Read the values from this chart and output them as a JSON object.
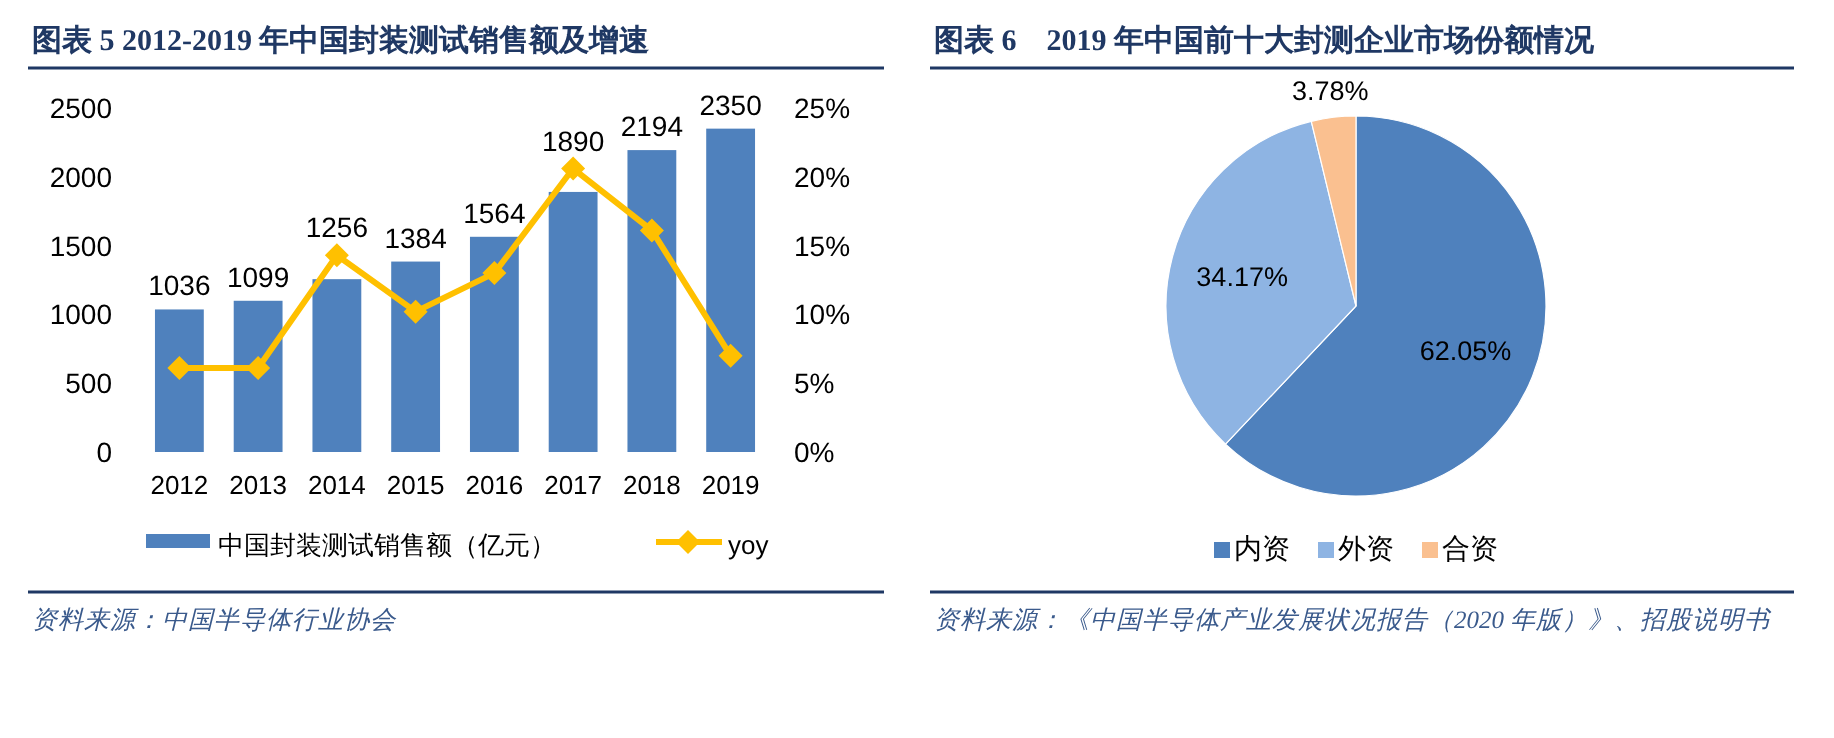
{
  "chart_data": [
    {
      "type": "bar",
      "title": "图表 5 2012-2019 年中国封装测试销售额及增速",
      "categories": [
        "2012",
        "2013",
        "2014",
        "2015",
        "2016",
        "2017",
        "2018",
        "2019"
      ],
      "series": [
        {
          "name": "中国封装测试销售额（亿元）",
          "type": "bar",
          "color": "#4f81bd",
          "values": [
            1036,
            1099,
            1256,
            1384,
            1564,
            1890,
            2194,
            2350
          ],
          "value_labels": [
            "1036",
            "1099",
            "1256",
            "1384",
            "1564",
            "1890",
            "2194",
            "2350"
          ]
        },
        {
          "name": "yoy",
          "type": "line",
          "axis": "y2",
          "color": "#ffc000",
          "marker": "diamond",
          "values": [
            6.1,
            6.1,
            14.3,
            10.2,
            13.0,
            20.6,
            16.1,
            7.0
          ]
        }
      ],
      "ylim": [
        0,
        2500
      ],
      "yticks": [
        0,
        500,
        1000,
        1500,
        2000,
        2500
      ],
      "y2lim": [
        0,
        25
      ],
      "y2ticks": [
        {
          "value": 0,
          "label": "0%"
        },
        {
          "value": 5,
          "label": "5%"
        },
        {
          "value": 10,
          "label": "10%"
        },
        {
          "value": 15,
          "label": "15%"
        },
        {
          "value": 20,
          "label": "20%"
        },
        {
          "value": 25,
          "label": "25%"
        }
      ],
      "grid": false,
      "legend": "bottom",
      "annotations": [
        "资料来源：中国半导体行业协会"
      ]
    },
    {
      "type": "pie",
      "title": "图表 6　2019 年中国前十大封测企业市场份额情况",
      "categories": [
        "内资",
        "外资",
        "合资"
      ],
      "values": [
        62.05,
        34.17,
        3.78
      ],
      "colors": [
        "#4f81bd",
        "#8eb4e3",
        "#fac090"
      ],
      "value_labels": [
        "62.05%",
        "34.17%",
        "3.78%"
      ],
      "legend": "bottom",
      "annotations": [
        "资料来源：《中国半导体产业发展状况报告（2020 年版）》、招股说明书"
      ]
    }
  ]
}
